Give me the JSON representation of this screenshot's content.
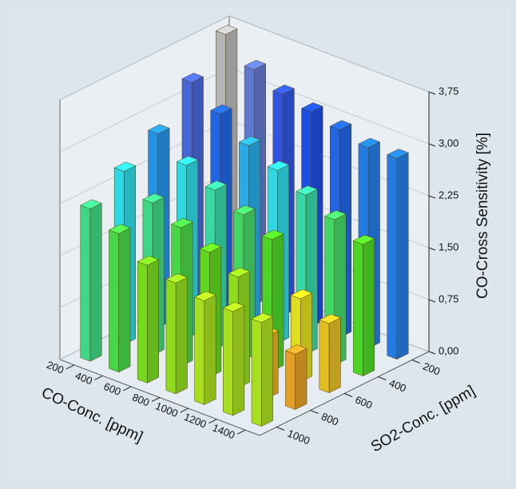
{
  "chart_data": {
    "type": "bar3d",
    "x_label": "CO-Conc. [ppm]",
    "y_label": "SO2-Conc. [ppm]",
    "z_label": "CO-Cross Sensitivity [%]",
    "x": [
      200,
      400,
      600,
      800,
      1000,
      1200,
      1400
    ],
    "y": [
      200,
      400,
      600,
      800,
      1000
    ],
    "values": [
      [
        3.75,
        3.3,
        2.8,
        2.5,
        2.2
      ],
      [
        3.4,
        3.0,
        2.5,
        2.2,
        2.0
      ],
      [
        3.2,
        2.7,
        2.3,
        2.0,
        1.7
      ],
      [
        3.1,
        2.5,
        2.1,
        1.8,
        1.6
      ],
      [
        3.0,
        2.3,
        1.9,
        1.6,
        1.5
      ],
      [
        2.9,
        2.1,
        1.2,
        0.9,
        1.5
      ],
      [
        2.9,
        1.9,
        1.0,
        0.8,
        1.5
      ]
    ],
    "zlim": [
      0,
      3.75
    ],
    "zticks": [
      {
        "value": 0,
        "label": "0,00"
      },
      {
        "value": 0.75,
        "label": "0,75"
      },
      {
        "value": 1.5,
        "label": "1,50"
      },
      {
        "value": 2.25,
        "label": "2,25"
      },
      {
        "value": 3,
        "label": "3,00"
      },
      {
        "value": 3.75,
        "label": "3,75"
      }
    ],
    "colormap": [
      "#e51010",
      "#ef8a2a",
      "#eef020",
      "#52e020",
      "#30e4f0",
      "#1e4cf0",
      "#c0c0c0"
    ],
    "grid": true
  }
}
